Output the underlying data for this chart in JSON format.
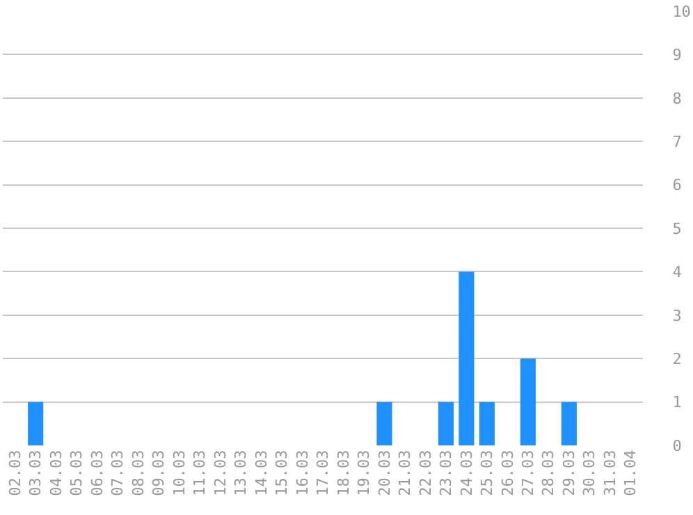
{
  "chart_data": {
    "type": "bar",
    "categories": [
      "02.03",
      "03.03",
      "04.03",
      "05.03",
      "06.03",
      "07.03",
      "08.03",
      "09.03",
      "10.03",
      "11.03",
      "12.03",
      "13.03",
      "14.03",
      "15.03",
      "16.03",
      "17.03",
      "18.03",
      "19.03",
      "20.03",
      "21.03",
      "22.03",
      "23.03",
      "24.03",
      "25.03",
      "26.03",
      "27.03",
      "28.03",
      "29.03",
      "30.03",
      "31.03",
      "01.04"
    ],
    "values": [
      0,
      1,
      0,
      0,
      0,
      0,
      0,
      0,
      0,
      0,
      0,
      0,
      0,
      0,
      0,
      0,
      0,
      0,
      1,
      0,
      0,
      1,
      4,
      1,
      0,
      2,
      0,
      1,
      0,
      0,
      0
    ],
    "color": "#1e90ff",
    "ylim": [
      0,
      10
    ],
    "yticks": [
      0,
      1,
      2,
      3,
      4,
      5,
      6,
      7,
      8,
      9,
      10
    ],
    "grid": "y",
    "legend": false
  }
}
